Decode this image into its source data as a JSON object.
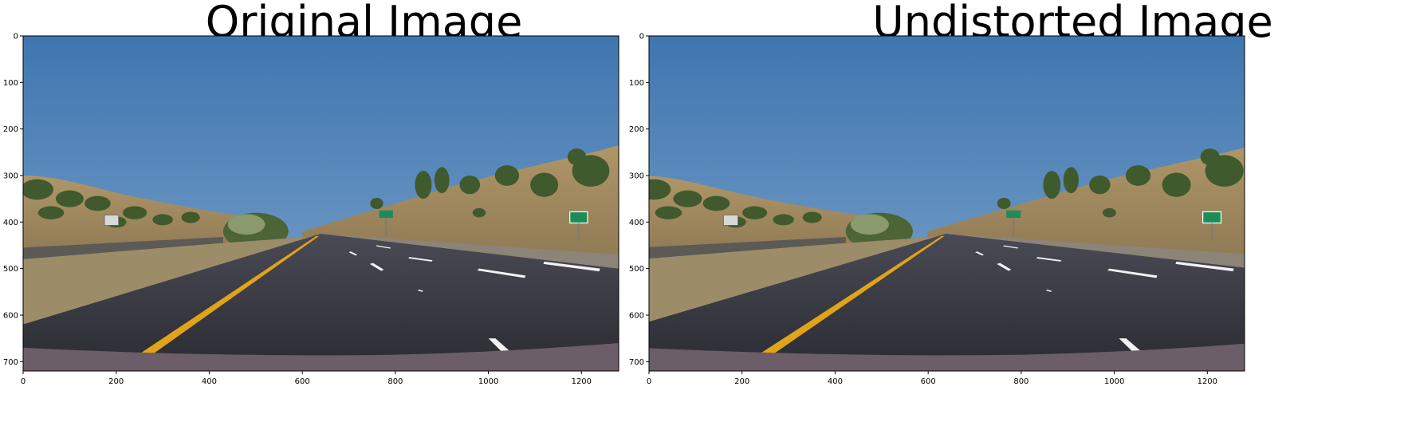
{
  "panels": [
    {
      "title": "Original Image",
      "x_ticks": [
        "0",
        "200",
        "400",
        "600",
        "800",
        "1000",
        "1200"
      ],
      "y_ticks": [
        "0",
        "100",
        "200",
        "300",
        "400",
        "500",
        "600",
        "700"
      ]
    },
    {
      "title": "Undistorted Image",
      "x_ticks": [
        "0",
        "200",
        "400",
        "600",
        "800",
        "1000",
        "1200"
      ],
      "y_ticks": [
        "0",
        "100",
        "200",
        "300",
        "400",
        "500",
        "600",
        "700"
      ]
    }
  ],
  "scene": {
    "sky_color": "#4a80b8",
    "lane_line_color": "#e0a41a",
    "road_color": "#3b3b44",
    "hill_color": "#b49a6a",
    "tree_color": "#3f5a2c"
  }
}
